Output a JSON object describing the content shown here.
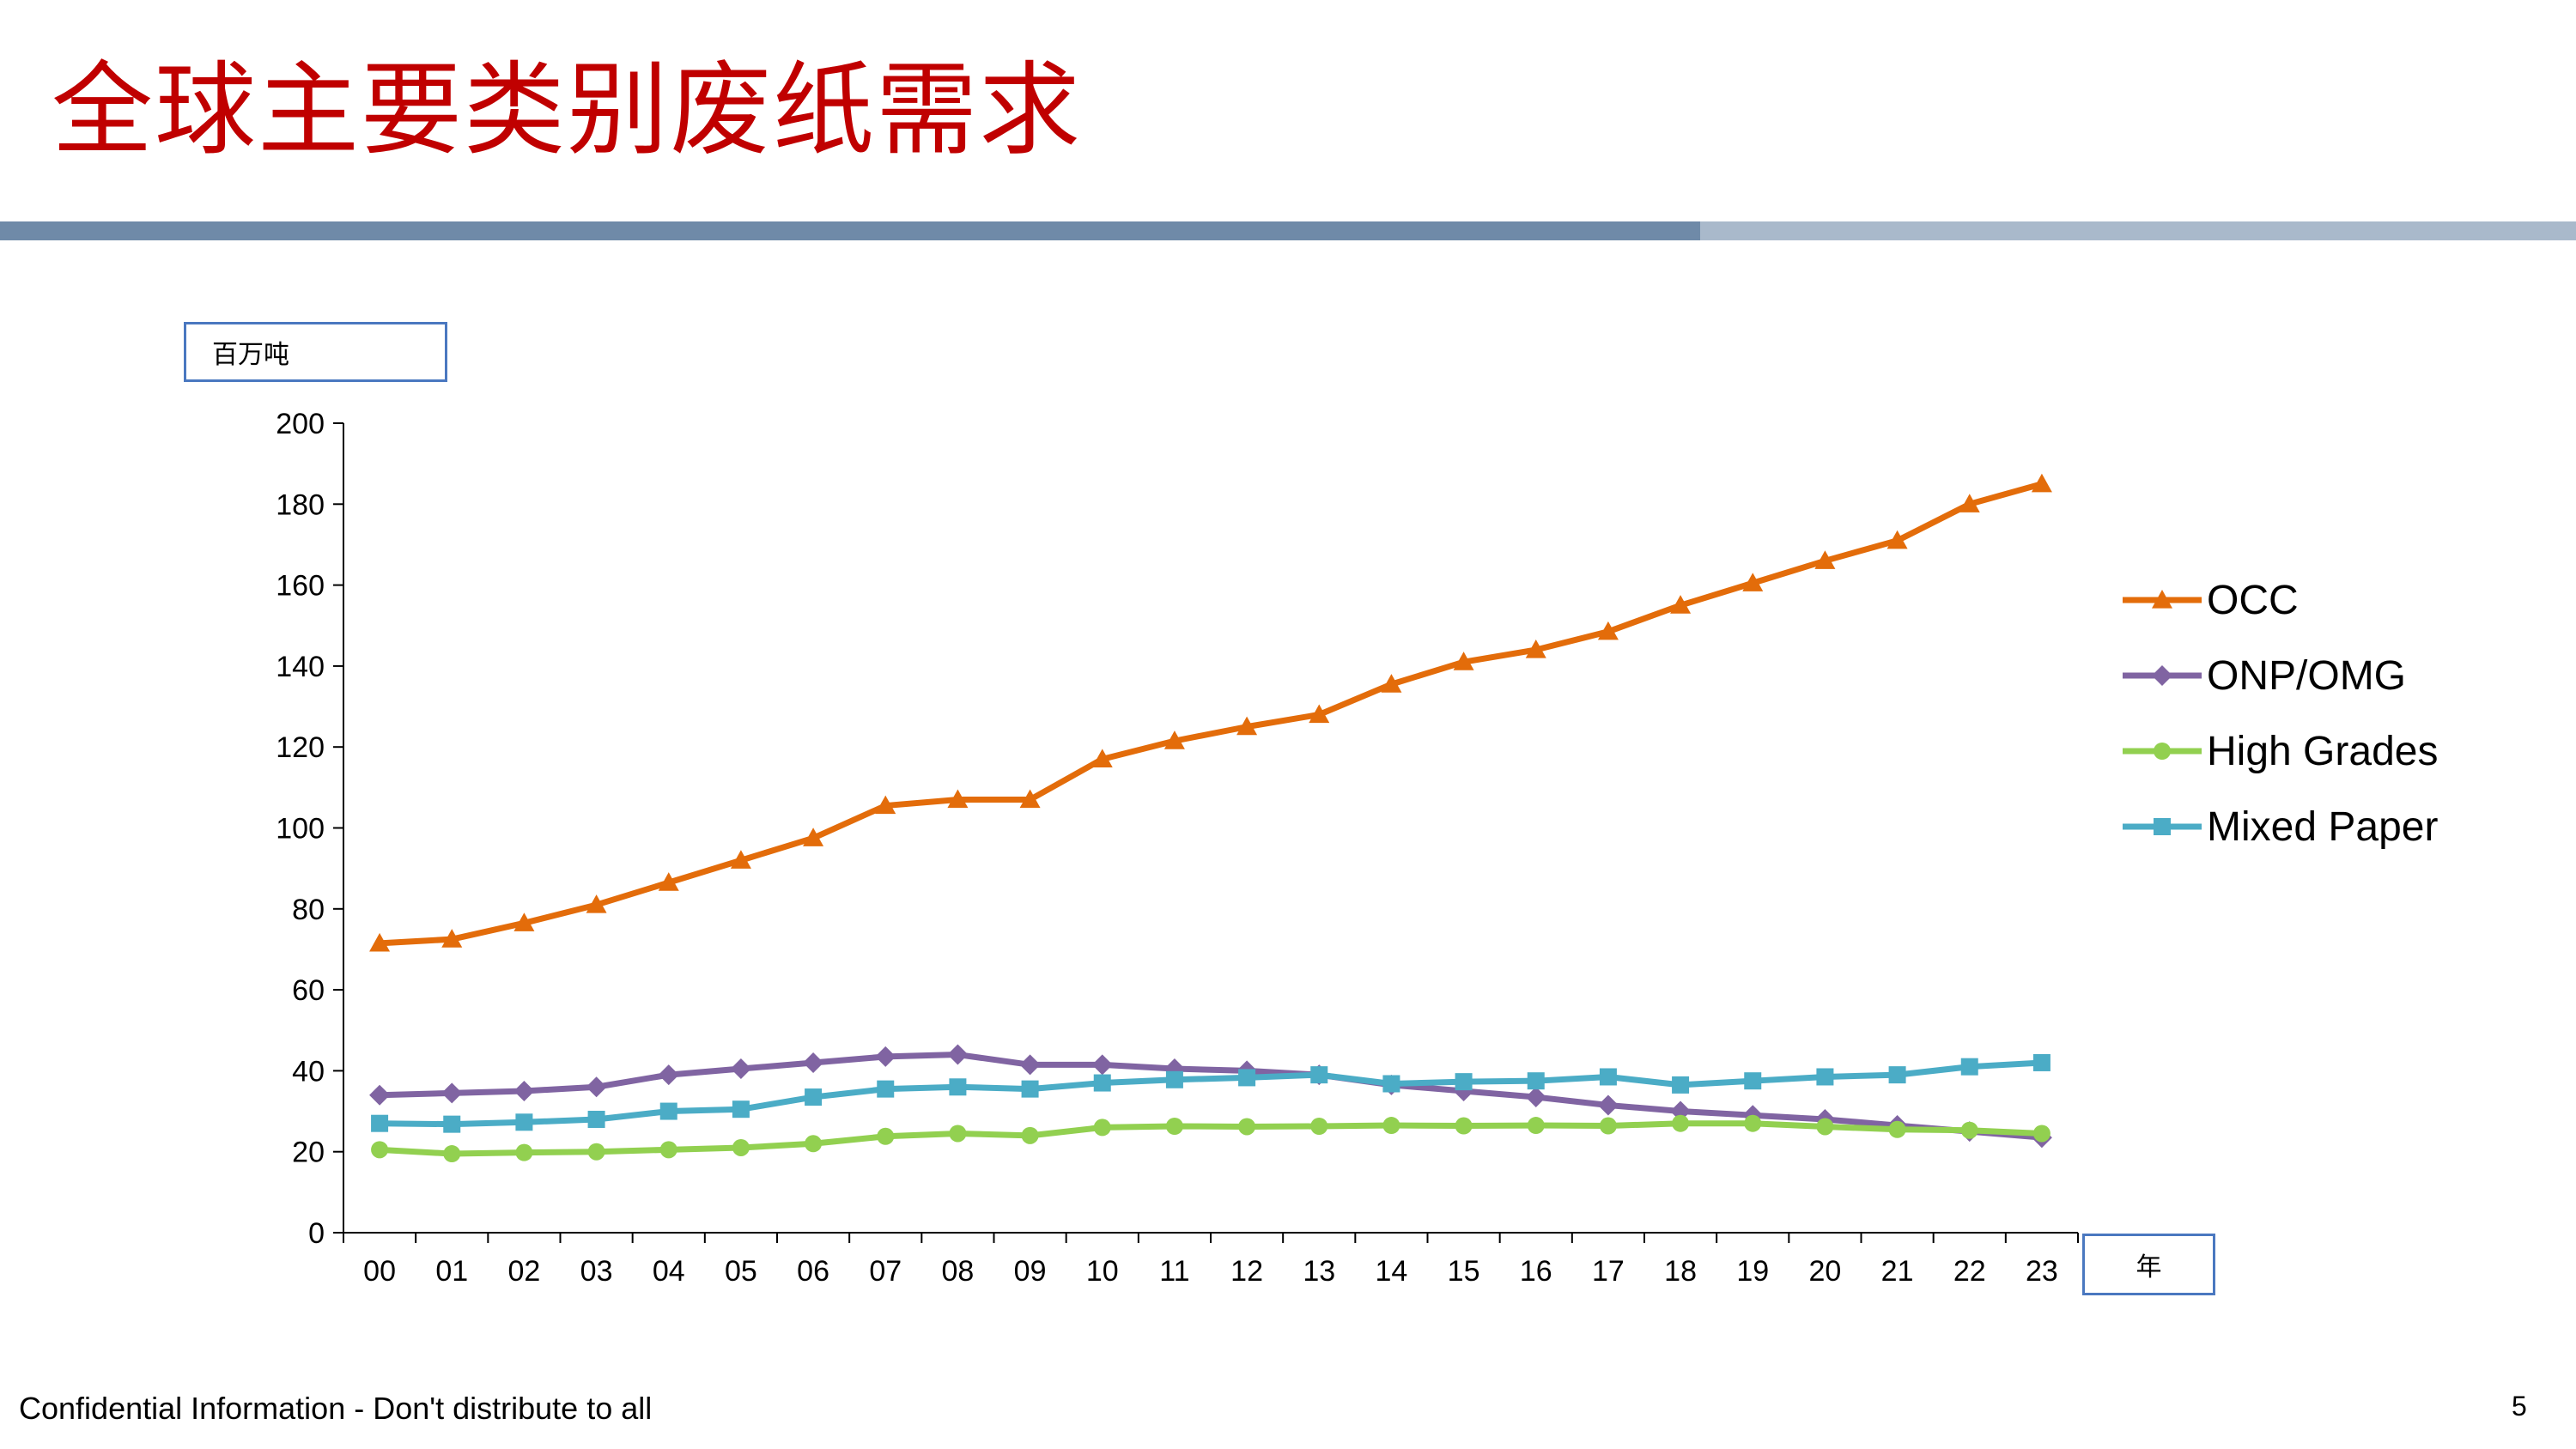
{
  "slide": {
    "title": "全球主要类别废纸需求",
    "footer": "Confidential Information - Don't distribute to all",
    "page_number": "5",
    "colors": {
      "title": "#c00000",
      "band_dark": "#6f8aa8",
      "band_light": "#a9b9cb",
      "box_border": "#4a78c0"
    }
  },
  "chart_data": {
    "type": "line",
    "unit_label": "百万吨",
    "x_axis_label": "年",
    "categories": [
      "00",
      "01",
      "02",
      "03",
      "04",
      "05",
      "06",
      "07",
      "08",
      "09",
      "10",
      "11",
      "12",
      "13",
      "14",
      "15",
      "16",
      "17",
      "18",
      "19",
      "20",
      "21",
      "22",
      "23"
    ],
    "ylim": [
      0,
      200
    ],
    "yticks": [
      0,
      20,
      40,
      60,
      80,
      100,
      120,
      140,
      160,
      180,
      200
    ],
    "grid": false,
    "legend_position": "right",
    "series": [
      {
        "name": "OCC",
        "color": "#e36c0a",
        "marker": "triangle",
        "values": [
          71.5,
          72.5,
          76.5,
          81,
          86.5,
          92,
          97.5,
          105.5,
          107,
          107,
          117,
          121.5,
          125,
          128,
          135.5,
          141,
          144,
          148.5,
          155,
          160.5,
          166,
          171,
          180,
          185
        ]
      },
      {
        "name": "ONP/OMG",
        "color": "#8064a2",
        "marker": "diamond",
        "values": [
          34,
          34.5,
          35,
          36,
          39,
          40.5,
          42,
          43.5,
          44,
          41.5,
          41.5,
          40.5,
          40,
          39,
          36.5,
          35,
          33.5,
          31.5,
          30,
          29,
          28,
          26.5,
          25,
          23.5
        ]
      },
      {
        "name": "High Grades",
        "color": "#92d050",
        "marker": "circle",
        "values": [
          20.5,
          19.5,
          19.8,
          20,
          20.5,
          21,
          22,
          23.8,
          24.5,
          24,
          26,
          26.3,
          26.2,
          26.3,
          26.5,
          26.4,
          26.5,
          26.4,
          27,
          27,
          26.2,
          25.5,
          25.3,
          24.5
        ]
      },
      {
        "name": "Mixed Paper",
        "color": "#4bacc6",
        "marker": "square",
        "values": [
          27,
          26.8,
          27.3,
          28,
          30,
          30.5,
          33.5,
          35.5,
          36,
          35.5,
          37,
          37.8,
          38.3,
          39,
          36.8,
          37.3,
          37.5,
          38.5,
          36.5,
          37.5,
          38.5,
          39,
          41,
          42
        ]
      }
    ]
  }
}
